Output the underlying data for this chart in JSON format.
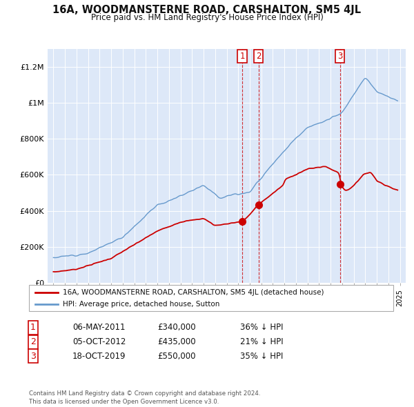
{
  "title": "16A, WOODMANSTERNE ROAD, CARSHALTON, SM5 4JL",
  "subtitle": "Price paid vs. HM Land Registry's House Price Index (HPI)",
  "legend_label_red": "16A, WOODMANSTERNE ROAD, CARSHALTON, SM5 4JL (detached house)",
  "legend_label_blue": "HPI: Average price, detached house, Sutton",
  "transactions": [
    {
      "num": 1,
      "date": "06-MAY-2011",
      "year": 2011.35,
      "price": 340000,
      "pct": "36% ↓ HPI"
    },
    {
      "num": 2,
      "date": "05-OCT-2012",
      "year": 2012.75,
      "price": 435000,
      "pct": "21% ↓ HPI"
    },
    {
      "num": 3,
      "date": "18-OCT-2019",
      "year": 2019.8,
      "price": 550000,
      "pct": "35% ↓ HPI"
    }
  ],
  "footer": "Contains HM Land Registry data © Crown copyright and database right 2024.\nThis data is licensed under the Open Government Licence v3.0.",
  "ylim": [
    0,
    1300000
  ],
  "xlim": [
    1994.5,
    2025.5
  ],
  "yticks": [
    0,
    200000,
    400000,
    600000,
    800000,
    1000000,
    1200000
  ],
  "ytick_labels": [
    "£0",
    "£200K",
    "£400K",
    "£600K",
    "£800K",
    "£1M",
    "£1.2M"
  ],
  "red_color": "#cc0000",
  "blue_color": "#6699cc",
  "background_color": "#dde8f8"
}
